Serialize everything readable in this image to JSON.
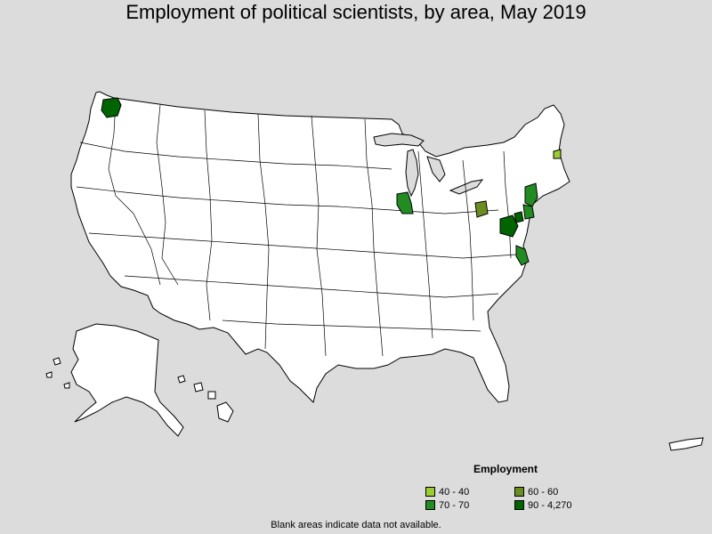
{
  "title": "Employment of political scientists, by area, May 2019",
  "legend": {
    "title": "Employment",
    "items": [
      {
        "label": "40 - 40",
        "color": "#9acd32"
      },
      {
        "label": "60 - 60",
        "color": "#6b8e23"
      },
      {
        "label": "70 - 70",
        "color": "#228b22"
      },
      {
        "label": "90 - 4,270",
        "color": "#006400"
      }
    ]
  },
  "footnote": "Blank areas indicate data not available.",
  "colors": {
    "background": "#dcdcdc",
    "land": "#ffffff",
    "border": "#000000"
  }
}
